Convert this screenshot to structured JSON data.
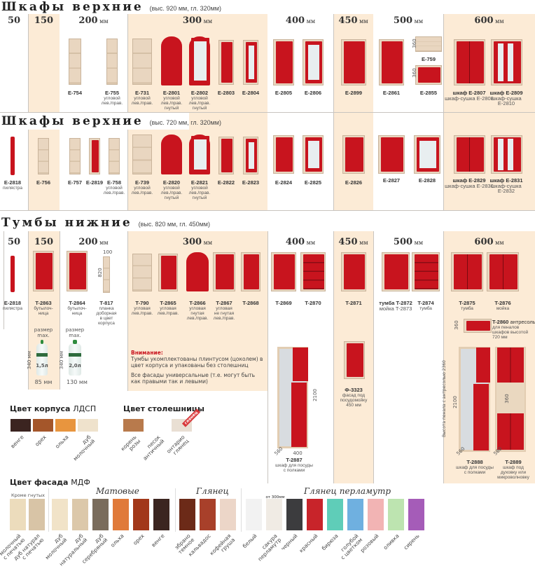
{
  "sections": [
    {
      "title": "Шкафы верхние",
      "subtitle": "(выс. 920 мм, гл. 320мм)",
      "widths": [
        "50",
        "150",
        "200 мм",
        "300 мм",
        "400 мм",
        "450 мм",
        "500 мм",
        "600 мм"
      ],
      "items": [
        {
          "code": "E-754",
          "caption": ""
        },
        {
          "code": "E-755",
          "caption": "угловой\nлев./прав."
        },
        {
          "code": "E-731",
          "caption": "угловой\nлев./прав."
        },
        {
          "code": "E-2801",
          "caption": "угловой\nлев./прав.\nгнутый"
        },
        {
          "code": "E-2802",
          "caption": "угловой\nлев./прав.\nгнутый"
        },
        {
          "code": "E-2803",
          "caption": ""
        },
        {
          "code": "E-2804",
          "caption": ""
        },
        {
          "code": "E-2805",
          "caption": ""
        },
        {
          "code": "E-2806",
          "caption": ""
        },
        {
          "code": "E-2899",
          "caption": ""
        },
        {
          "code": "E-2861",
          "caption": ""
        },
        {
          "code": "E-759",
          "caption": ""
        },
        {
          "code": "E-2855",
          "caption": ""
        },
        {
          "code": "шкаф E-2807",
          "caption": "шкаф-сушка E-2808"
        },
        {
          "code": "шкаф E-2809",
          "caption": "шкаф-сушка E-2810"
        }
      ],
      "dims": [
        "360",
        "360"
      ]
    },
    {
      "title": "Шкафы верхние",
      "subtitle": "(выс. 720 мм, гл. 320мм)",
      "items": [
        {
          "code": "E-2818",
          "caption": "пилястра"
        },
        {
          "code": "E-756",
          "caption": ""
        },
        {
          "code": "E-757",
          "caption": ""
        },
        {
          "code": "E-2819",
          "caption": ""
        },
        {
          "code": "E-758",
          "caption": "угловой\nлев./прав."
        },
        {
          "code": "E-739",
          "caption": "угловой\nлев./прав."
        },
        {
          "code": "E-2820",
          "caption": "угловой\nлев./прав.\nгнутый"
        },
        {
          "code": "E-2821",
          "caption": "угловой\nлев./прав.\nгнутый"
        },
        {
          "code": "E-2822",
          "caption": ""
        },
        {
          "code": "E-2823",
          "caption": ""
        },
        {
          "code": "E-2824",
          "caption": ""
        },
        {
          "code": "E-2825",
          "caption": ""
        },
        {
          "code": "E-2826",
          "caption": ""
        },
        {
          "code": "E-2827",
          "caption": ""
        },
        {
          "code": "E-2828",
          "caption": ""
        },
        {
          "code": "шкаф E-2829",
          "caption": "шкаф-сушка E-2830"
        },
        {
          "code": "шкаф E-2831",
          "caption": "шкаф-сушка E-2832"
        }
      ]
    },
    {
      "title": "Тумбы нижние",
      "subtitle": "(выс. 820 мм, гл. 450мм)",
      "widths": [
        "50",
        "150",
        "200 мм",
        "300 мм",
        "400 мм",
        "450 мм",
        "500 мм",
        "600 мм"
      ],
      "items": [
        {
          "code": "E-2818",
          "caption": "пилястра"
        },
        {
          "code": "T-2863",
          "caption": "бутылоч-\nница"
        },
        {
          "code": "T-2864",
          "caption": "бутылоч-\nница"
        },
        {
          "code": "T-817",
          "caption": "планка\nдоборная\nв цвет\nкорпуса"
        },
        {
          "code": "T-790",
          "caption": "угловая\nлев./прав."
        },
        {
          "code": "T-2865",
          "caption": "угловая\nлев./прав."
        },
        {
          "code": "T-2866",
          "caption": "угловая\nгнутая\nлев./прав."
        },
        {
          "code": "T-2867",
          "caption": "угловая\nне гнутая\nлев./прав."
        },
        {
          "code": "T-2868",
          "caption": ""
        },
        {
          "code": "T-2869",
          "caption": ""
        },
        {
          "code": "T-2870",
          "caption": ""
        },
        {
          "code": "T-2871",
          "caption": ""
        },
        {
          "code": "тумба T-2872",
          "caption": "мойка T-2873"
        },
        {
          "code": "T-2874",
          "caption": "тумба"
        },
        {
          "code": "T-2875",
          "caption": "тумба"
        },
        {
          "code": "T-2876",
          "caption": "мойка"
        }
      ],
      "dims": [
        "100",
        "820"
      ]
    }
  ],
  "bottles": [
    {
      "title": "размер\nmax.",
      "height": "340 мм",
      "volume": "1,5л",
      "width": "85 мм"
    },
    {
      "title": "размер\nmax.",
      "height": "340 мм",
      "volume": "2,0л",
      "width": "130 мм"
    }
  ],
  "notice": {
    "heading": "Внимание:",
    "line1": "Тумбы укомплектованы плинтусом (цоколем) в цвет корпуса и упакованы без столешниц",
    "line2": "Все фасады универсальные (т.е. могут быть как правыми так и левыми)"
  },
  "tall": [
    {
      "code": "T-2887",
      "caption": "шкаф для посуды\nс полками",
      "dims": [
        "2100",
        "400",
        "560"
      ]
    },
    {
      "code": "Ф-3323",
      "caption": "фасад под\nпосудомойку\n450 мм"
    },
    {
      "code": "T-2860",
      "caption": "антресоль",
      "note": "для пеналов\nшкафов высотой 720 мм",
      "dims": [
        "360"
      ]
    },
    {
      "code": "T-2888",
      "caption": "шкаф для посуды\nс полками",
      "dims": [
        "2100",
        "560"
      ]
    },
    {
      "code": "T-2889",
      "caption": "шкаф под\nдуховку или\nмикроволновку",
      "dims": [
        "360",
        "560"
      ]
    },
    {
      "height_note": "Высота пенала с антресолью 2360"
    }
  ],
  "body_colors": {
    "title_bold": "Цвет корпуса",
    "title_rest": "ЛДСП",
    "swatches": [
      {
        "name": "венге",
        "color": "#3b2420"
      },
      {
        "name": "орех",
        "color": "#a4562a"
      },
      {
        "name": "ольха",
        "color": "#e8953e"
      },
      {
        "name": "дуб\nмолочный",
        "color": "#efe2cc"
      }
    ]
  },
  "top_colors": {
    "title": "Цвет столешницы",
    "badge": "глянец",
    "swatches": [
      {
        "name": "корень\nрозы",
        "color": "#b87a4c"
      },
      {
        "name": "песок\nантичный",
        "color": "#ffffff"
      },
      {
        "name": "онтарио\nглянец",
        "color": "#e9dfd3"
      }
    ]
  },
  "facade_colors": {
    "title_bold": "Цвет фасада",
    "title_rest": "МДФ",
    "groups": [
      {
        "label": "Кроме гнутых",
        "swatches": [
          {
            "name": "молочный\nс печатью",
            "color": "#ecdcbc"
          },
          {
            "name": "дуб натурал\nс печатью",
            "color": "#d8c4a6"
          }
        ]
      },
      {
        "label": "Матовые",
        "swatches": [
          {
            "name": "дуб\nмолочный",
            "color": "#f1e3c8"
          },
          {
            "name": "дуб\nнатуральный",
            "color": "#dcc8aa"
          },
          {
            "name": "дуб\nсеребряный",
            "color": "#7a6c5c"
          },
          {
            "name": "ольха",
            "color": "#e07a3a"
          },
          {
            "name": "орех",
            "color": "#a2381a"
          },
          {
            "name": "венге",
            "color": "#3b2520"
          }
        ]
      },
      {
        "label": "Глянец",
        "swatches": [
          {
            "name": "эбрано\nтемное",
            "color": "#6c2a18"
          },
          {
            "name": "кальвадос",
            "color": "#a8402a"
          },
          {
            "name": "кофейная\nгруша",
            "color": "#ecd6c8"
          }
        ]
      },
      {
        "label": "Глянец перламутр",
        "note": "от 300мм",
        "swatches": [
          {
            "name": "белый",
            "color": "#f2f2f2"
          },
          {
            "name": "сакура\nперламутр",
            "color": "#f0ebe4"
          },
          {
            "name": "черный",
            "color": "#3c3c3e"
          },
          {
            "name": "красный",
            "color": "#c8242a"
          },
          {
            "name": "бирюза",
            "color": "#5fcdb8"
          },
          {
            "name": "голубой\nс цветком",
            "color": "#6fb0e0"
          },
          {
            "name": "розовый",
            "color": "#f2b4b4"
          },
          {
            "name": "оливка",
            "color": "#bde4b0"
          },
          {
            "name": "сирень",
            "color": "#a55cb8"
          }
        ]
      }
    ]
  }
}
